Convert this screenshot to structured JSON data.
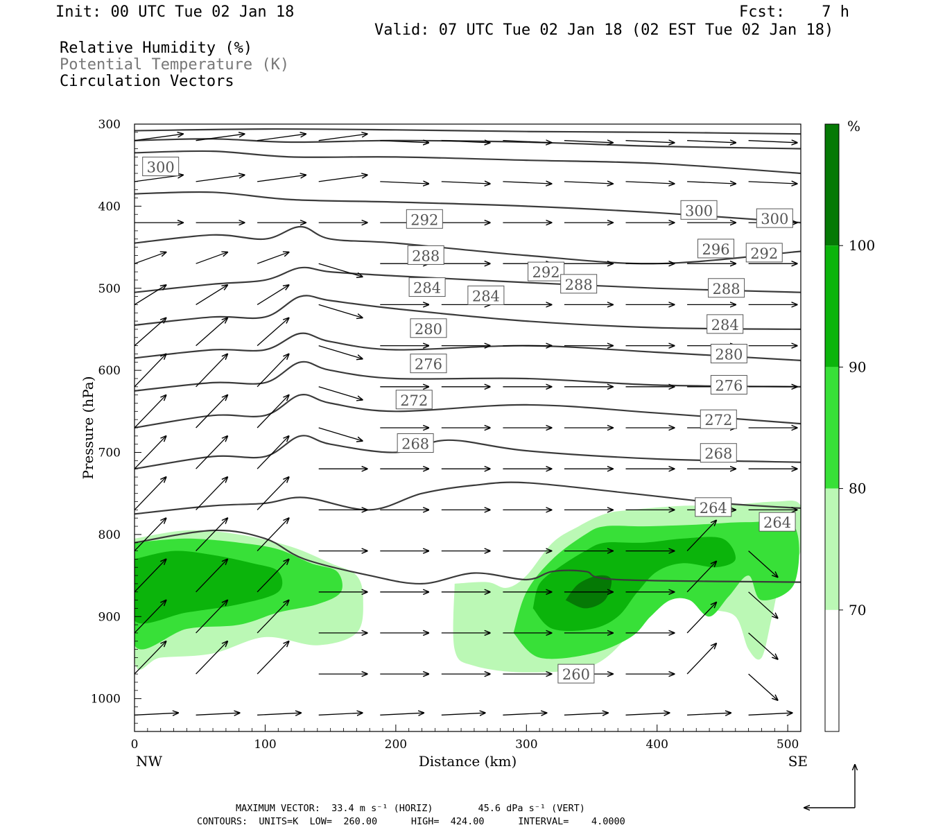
{
  "header": {
    "init": "Init: 00 UTC Tue 02 Jan 18",
    "fcst": "Fcst:    7 h",
    "valid": "Valid: 07 UTC Tue 02 Jan 18 (02 EST Tue 02 Jan 18)",
    "legend1": "Relative Humidity (%)",
    "legend2": "Potential Temperature (K)",
    "legend3": "Circulation Vectors"
  },
  "footer": {
    "line1": "MAXIMUM VECTOR:  33.4 m s⁻¹ (HORIZ)        45.6 dPa s⁻¹ (VERT)",
    "line2": "CONTOURS:  UNITS=K  LOW=  260.00      HIGH=  424.00      INTERVAL=    4.0000"
  },
  "colors": {
    "rh70": "#bbf8b5",
    "rh80": "#38e038",
    "rh90": "#0bb40b",
    "rh100": "#057905",
    "theta": "#3a3a3a",
    "vector": "#000000"
  },
  "chart_data": {
    "type": "cross-section",
    "xlabel": "Distance (km)",
    "ylabel": "Pressure (hPa)",
    "xlim": [
      0,
      510
    ],
    "ylim": [
      1040,
      300
    ],
    "x_ticks": [
      0,
      100,
      200,
      300,
      400,
      500
    ],
    "y_ticks": [
      300,
      400,
      500,
      600,
      700,
      800,
      900,
      1000
    ],
    "x_end_labels": {
      "left": "NW",
      "right": "SE"
    },
    "colorbar": {
      "unit": "%",
      "levels": [
        70,
        80,
        90,
        100
      ]
    },
    "theta_contours": [
      {
        "value": 308,
        "points": [
          [
            0,
            308
          ],
          [
            100,
            306
          ],
          [
            200,
            307
          ],
          [
            300,
            309
          ],
          [
            400,
            310
          ],
          [
            510,
            312
          ]
        ]
      },
      {
        "value": 304,
        "points": [
          [
            0,
            320
          ],
          [
            60,
            318
          ],
          [
            120,
            322
          ],
          [
            200,
            320
          ],
          [
            300,
            322
          ],
          [
            400,
            327
          ],
          [
            510,
            330
          ]
        ]
      },
      {
        "value": 300,
        "label": "300",
        "label_pos": [
          [
            20,
            352
          ],
          [
            432,
            405
          ],
          [
            490,
            415
          ]
        ],
        "points": [
          [
            0,
            335
          ],
          [
            60,
            333
          ],
          [
            120,
            340
          ],
          [
            200,
            340
          ],
          [
            300,
            344
          ],
          [
            400,
            348
          ],
          [
            510,
            360
          ]
        ]
      },
      {
        "value": 296,
        "label": "296",
        "label_pos": [
          [
            445,
            452
          ]
        ],
        "points": [
          [
            0,
            385
          ],
          [
            60,
            383
          ],
          [
            120,
            392
          ],
          [
            200,
            395
          ],
          [
            300,
            400
          ],
          [
            400,
            408
          ],
          [
            510,
            420
          ]
        ]
      },
      {
        "value": 292,
        "label": "292",
        "label_pos": [
          [
            222,
            416
          ],
          [
            315,
            480
          ],
          [
            482,
            457
          ]
        ],
        "points": [
          [
            0,
            445
          ],
          [
            60,
            435
          ],
          [
            100,
            440
          ],
          [
            127,
            425
          ],
          [
            150,
            440
          ],
          [
            200,
            445
          ],
          [
            300,
            460
          ],
          [
            400,
            470
          ],
          [
            510,
            455
          ]
        ]
      },
      {
        "value": 288,
        "label": "288",
        "label_pos": [
          [
            223,
            460
          ],
          [
            340,
            495
          ],
          [
            453,
            500
          ]
        ],
        "points": [
          [
            0,
            505
          ],
          [
            60,
            495
          ],
          [
            100,
            490
          ],
          [
            127,
            475
          ],
          [
            150,
            480
          ],
          [
            200,
            485
          ],
          [
            300,
            493
          ],
          [
            400,
            500
          ],
          [
            510,
            505
          ]
        ]
      },
      {
        "value": 284,
        "label": "284",
        "label_pos": [
          [
            224,
            499
          ],
          [
            269,
            509
          ],
          [
            452,
            544
          ]
        ],
        "points": [
          [
            0,
            545
          ],
          [
            60,
            535
          ],
          [
            100,
            535
          ],
          [
            127,
            510
          ],
          [
            150,
            515
          ],
          [
            200,
            525
          ],
          [
            300,
            540
          ],
          [
            400,
            548
          ],
          [
            510,
            550
          ]
        ]
      },
      {
        "value": 280,
        "label": "280",
        "label_pos": [
          [
            225,
            549
          ],
          [
            455,
            580
          ]
        ],
        "points": [
          [
            0,
            585
          ],
          [
            60,
            575
          ],
          [
            100,
            575
          ],
          [
            127,
            555
          ],
          [
            150,
            565
          ],
          [
            200,
            575
          ],
          [
            300,
            570
          ],
          [
            400,
            578
          ],
          [
            510,
            588
          ]
        ]
      },
      {
        "value": 276,
        "label": "276",
        "label_pos": [
          [
            225,
            592
          ],
          [
            455,
            618
          ]
        ],
        "points": [
          [
            0,
            625
          ],
          [
            60,
            615
          ],
          [
            100,
            615
          ],
          [
            127,
            590
          ],
          [
            150,
            600
          ],
          [
            200,
            610
          ],
          [
            300,
            610
          ],
          [
            400,
            618
          ],
          [
            510,
            620
          ]
        ]
      },
      {
        "value": 272,
        "label": "272",
        "label_pos": [
          [
            214,
            636
          ],
          [
            447,
            660
          ]
        ],
        "points": [
          [
            0,
            670
          ],
          [
            60,
            655
          ],
          [
            100,
            655
          ],
          [
            127,
            630
          ],
          [
            150,
            640
          ],
          [
            200,
            650
          ],
          [
            300,
            642
          ],
          [
            400,
            652
          ],
          [
            510,
            665
          ]
        ]
      },
      {
        "value": 268,
        "label": "268",
        "label_pos": [
          [
            215,
            689
          ],
          [
            447,
            701
          ]
        ],
        "points": [
          [
            0,
            720
          ],
          [
            60,
            705
          ],
          [
            100,
            705
          ],
          [
            127,
            680
          ],
          [
            150,
            690
          ],
          [
            200,
            700
          ],
          [
            240,
            685
          ],
          [
            300,
            698
          ],
          [
            400,
            708
          ],
          [
            510,
            712
          ]
        ]
      },
      {
        "value": 264,
        "label": "264",
        "label_pos": [
          [
            443,
            767
          ],
          [
            492,
            785
          ]
        ],
        "points": [
          [
            0,
            775
          ],
          [
            60,
            765
          ],
          [
            100,
            762
          ],
          [
            130,
            755
          ],
          [
            180,
            770
          ],
          [
            220,
            750
          ],
          [
            260,
            740
          ],
          [
            300,
            737
          ],
          [
            380,
            750
          ],
          [
            450,
            762
          ],
          [
            510,
            768
          ]
        ]
      },
      {
        "value": 260,
        "label": "260",
        "label_pos": [
          [
            338,
            970
          ]
        ],
        "points": [
          [
            0,
            810
          ],
          [
            60,
            795
          ],
          [
            100,
            805
          ],
          [
            130,
            830
          ],
          [
            180,
            850
          ],
          [
            220,
            860
          ],
          [
            260,
            847
          ],
          [
            300,
            855
          ],
          [
            320,
            845
          ],
          [
            345,
            845
          ],
          [
            370,
            855
          ],
          [
            510,
            858
          ]
        ]
      }
    ],
    "vector_grid_spacing_km": 47,
    "max_vector": {
      "horizontal": "33.4 m s-1",
      "vertical": "45.6 dPa s-1"
    }
  }
}
